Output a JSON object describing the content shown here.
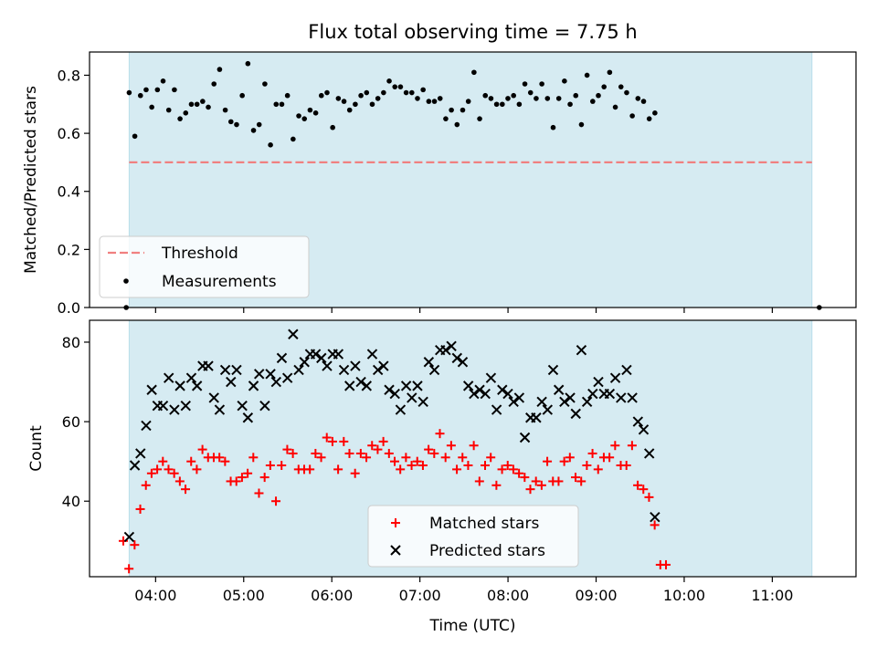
{
  "title": "Flux total observing time = 7.75 h",
  "colors": {
    "band": "#add8e6",
    "threshold": "#f08080",
    "matched": "#ff0000",
    "predicted": "#000000",
    "measure": "#000000"
  },
  "chart_data": [
    {
      "type": "scatter",
      "ylabel": "Matched/Predicted stars",
      "ylim": [
        0,
        0.88
      ],
      "yticks": [
        "0.0",
        "0.2",
        "0.4",
        "0.6",
        "0.8"
      ],
      "xlim": [
        3.25,
        11.95
      ],
      "observing_window": [
        "03:42",
        "11:27"
      ],
      "threshold": {
        "name": "Threshold",
        "value": 0.5,
        "x_range": [
          "03:42",
          "11:27"
        ]
      },
      "legend_position": "lower left",
      "series": [
        {
          "name": "Measurements",
          "t_start": "03:42",
          "t_step_min": 3.85,
          "values": [
            0.74,
            0.59,
            0.73,
            0.75,
            0.69,
            0.75,
            0.78,
            0.68,
            0.75,
            0.65,
            0.67,
            0.7,
            0.7,
            0.71,
            0.69,
            0.77,
            0.82,
            0.68,
            0.64,
            0.63,
            0.73,
            0.84,
            0.61,
            0.63,
            0.77,
            0.56,
            0.7,
            0.7,
            0.73,
            0.58,
            0.66,
            0.65,
            0.68,
            0.67,
            0.73,
            0.74,
            0.62,
            0.72,
            0.71,
            0.68,
            0.7,
            0.73,
            0.74,
            0.7,
            0.72,
            0.74,
            0.78,
            0.76,
            0.76,
            0.74,
            0.74,
            0.72,
            0.75,
            0.71,
            0.71,
            0.72,
            0.65,
            0.68,
            0.63,
            0.68,
            0.71,
            0.81,
            0.65,
            0.73,
            0.72,
            0.7,
            0.7,
            0.72,
            0.73,
            0.7,
            0.77,
            0.74,
            0.72,
            0.77,
            0.72,
            0.62,
            0.72,
            0.78,
            0.7,
            0.73,
            0.63,
            0.8,
            0.71,
            0.73,
            0.76,
            0.81,
            0.69,
            0.76,
            0.74,
            0.66,
            0.72,
            0.71,
            0.65,
            0.67
          ],
          "outliers": [
            {
              "x": "03:40",
              "y": 0.0
            },
            {
              "x": "11:32",
              "y": 0.0
            }
          ]
        }
      ]
    },
    {
      "type": "scatter",
      "ylabel": "Count",
      "xlabel": "Time (UTC)",
      "ylim": [
        21,
        85.5
      ],
      "yticks": [
        "40",
        "60",
        "80"
      ],
      "xlim": [
        3.25,
        11.95
      ],
      "xticks": [
        "04:00",
        "05:00",
        "06:00",
        "07:00",
        "08:00",
        "09:00",
        "10:00",
        "11:00"
      ],
      "legend_position": "lower center",
      "series": [
        {
          "name": "Matched stars",
          "marker": "plus",
          "t_start": "03:38",
          "t_step_min": 3.85,
          "values": [
            30,
            23,
            29,
            38,
            44,
            47,
            48,
            50,
            48,
            47,
            45,
            43,
            50,
            48,
            53,
            51,
            51,
            51,
            50,
            45,
            45,
            46,
            47,
            51,
            42,
            46,
            49,
            40,
            49,
            53,
            52,
            48,
            48,
            48,
            52,
            51,
            56,
            55,
            48,
            55,
            52,
            47,
            52,
            51,
            54,
            53,
            55,
            52,
            50,
            48,
            51,
            49,
            50,
            49,
            53,
            52,
            57,
            51,
            54,
            48,
            51,
            49,
            54,
            45,
            49,
            51,
            44,
            48,
            49,
            48,
            47,
            46,
            43,
            45,
            44,
            50,
            45,
            45,
            50,
            51,
            46,
            45,
            49,
            52,
            48,
            51,
            51,
            54,
            49,
            49,
            54,
            44,
            43,
            41,
            34,
            24,
            24
          ]
        },
        {
          "name": "Predicted stars",
          "marker": "cross",
          "t_start": "03:42",
          "t_step_min": 3.85,
          "values": [
            31,
            49,
            52,
            59,
            68,
            64,
            64,
            71,
            63,
            69,
            64,
            71,
            69,
            74,
            74,
            66,
            63,
            73,
            70,
            73,
            64,
            61,
            69,
            72,
            64,
            72,
            70,
            76,
            71,
            82,
            73,
            75,
            77,
            77,
            76,
            74,
            77,
            77,
            73,
            69,
            74,
            70,
            69,
            77,
            73,
            74,
            68,
            67,
            63,
            69,
            66,
            69,
            65,
            75,
            73,
            78,
            78,
            79,
            76,
            75,
            69,
            67,
            68,
            67,
            71,
            63,
            68,
            67,
            65,
            66,
            56,
            61,
            61,
            65,
            63,
            73,
            68,
            65,
            66,
            62,
            78,
            65,
            67,
            70,
            67,
            67,
            71,
            66,
            73,
            66,
            60,
            58,
            52,
            36
          ]
        }
      ]
    }
  ]
}
